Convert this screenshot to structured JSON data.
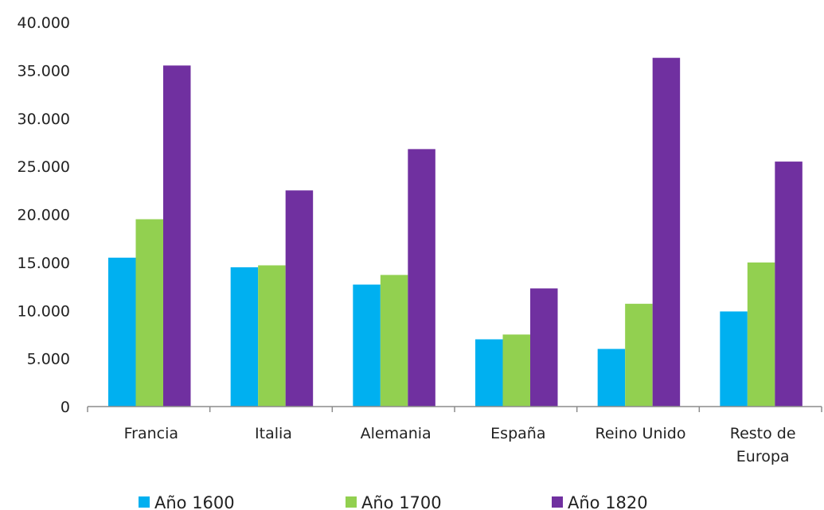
{
  "chart_data": {
    "type": "bar",
    "categories": [
      "Francia",
      "Italia",
      "Alemania",
      "España",
      "Reino Unido",
      "Resto de Europa"
    ],
    "category_lines": [
      [
        "Francia"
      ],
      [
        "Italia"
      ],
      [
        "Alemania"
      ],
      [
        "España"
      ],
      [
        "Reino Unido"
      ],
      [
        "Resto de",
        "Europa"
      ]
    ],
    "series": [
      {
        "name": "Año 1600",
        "color": "#00b0f0",
        "values": [
          15500,
          14500,
          12700,
          7000,
          6000,
          9900
        ]
      },
      {
        "name": "Año 1700",
        "color": "#92d050",
        "values": [
          19500,
          14700,
          13700,
          7500,
          10700,
          15000
        ]
      },
      {
        "name": "Año 1820",
        "color": "#7030a0",
        "values": [
          35500,
          22500,
          26800,
          12300,
          36300,
          25500
        ]
      }
    ],
    "ylim": [
      0,
      40000
    ],
    "yticks": [
      0,
      5000,
      10000,
      15000,
      20000,
      25000,
      30000,
      35000,
      40000
    ],
    "ytick_labels": [
      "0",
      "5.000",
      "10.000",
      "15.000",
      "20.000",
      "25.000",
      "30.000",
      "35.000",
      "40.000"
    ],
    "grid": false,
    "legend_position": "bottom",
    "title": "",
    "xlabel": "",
    "ylabel": ""
  }
}
